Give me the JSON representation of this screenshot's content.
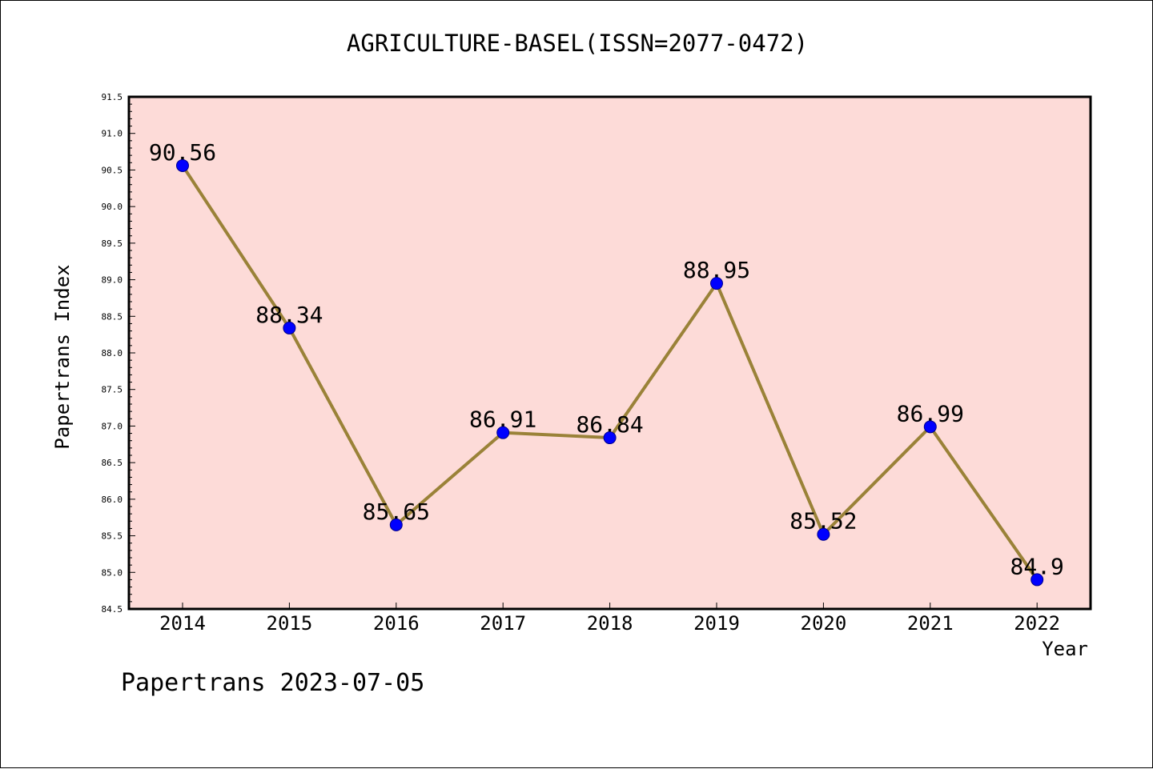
{
  "footer": {
    "text": "Papertrans 2023-07-05"
  },
  "colors": {
    "plot_background": "#fddbd8",
    "line": "#9a8238",
    "marker": "#0000ff",
    "axis": "#000000"
  },
  "chart_data": {
    "type": "line",
    "title": "AGRICULTURE-BASEL(ISSN=2077-0472)",
    "xlabel": "Year",
    "ylabel": "Papertrans Index",
    "categories": [
      "2014",
      "2015",
      "2016",
      "2017",
      "2018",
      "2019",
      "2020",
      "2021",
      "2022"
    ],
    "series": [
      {
        "values": [
          90.56,
          88.34,
          85.65,
          86.91,
          86.84,
          88.95,
          85.52,
          86.99,
          84.9
        ],
        "data_labels": [
          "90.56",
          "88.34",
          "85.65",
          "86.91",
          "86.84",
          "88.95",
          "85.52",
          "86.99",
          "84.9"
        ]
      }
    ],
    "ylim": [
      84.5,
      91.5
    ],
    "yticks": [
      "84.5",
      "85.0",
      "85.5",
      "86.0",
      "86.5",
      "87.0",
      "87.5",
      "88.0",
      "88.5",
      "89.0",
      "89.5",
      "90.0",
      "90.5",
      "91.0",
      "91.5"
    ],
    "grid": false,
    "legend": "none"
  }
}
